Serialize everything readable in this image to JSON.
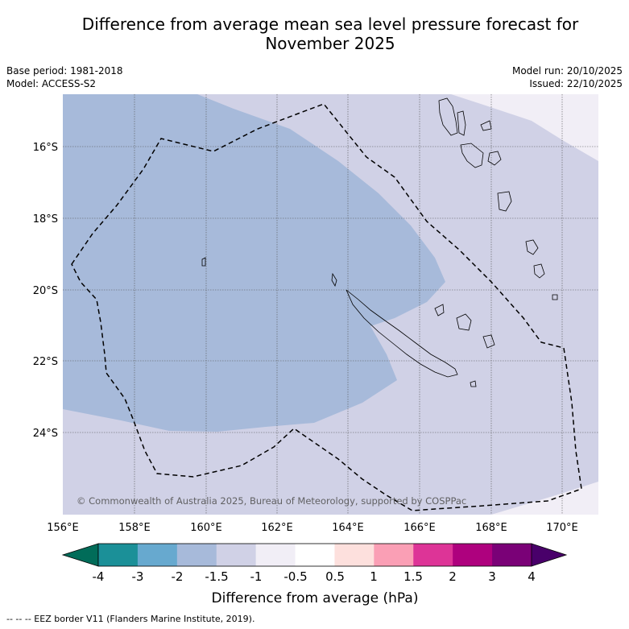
{
  "header": {
    "title_line1": "Difference from average mean sea level pressure forecast for",
    "title_line2": "November 2025"
  },
  "meta_left": {
    "base_period": "Base period: 1981-2018",
    "model": "Model: ACCESS-S2"
  },
  "meta_right": {
    "model_run": "Model run: 20/10/2025",
    "issued": "Issued: 22/10/2025"
  },
  "map": {
    "lat_labels": [
      "16°S",
      "18°S",
      "20°S",
      "22°S",
      "24°S"
    ],
    "lon_labels": [
      "156°E",
      "158°E",
      "160°E",
      "162°E",
      "164°E",
      "166°E",
      "168°E",
      "170°E"
    ],
    "copyright": "© Commonwealth of Australia 2025, Bureau of Meteorology, supported by COSPPac"
  },
  "colorbar": {
    "ticks": [
      "-4",
      "-3",
      "-2",
      "-1.5",
      "-1",
      "-0.5",
      "0.5",
      "1",
      "1.5",
      "2",
      "3",
      "4"
    ],
    "label": "Difference from average (hPa)",
    "colors": [
      "#1b9098",
      "#67a9cf",
      "#a7bada",
      "#d0d1e6",
      "#f1eef6",
      "#ffffff",
      "#fde0dd",
      "#fa9fb5",
      "#dd3497",
      "#ae017e",
      "#7a0177"
    ],
    "low_extend_color": "#016c59",
    "high_extend_color": "#49006a"
  },
  "legend": {
    "eez": "--  --  -- EEZ border V11 (Flanders Marine Institute, 2019)."
  }
}
